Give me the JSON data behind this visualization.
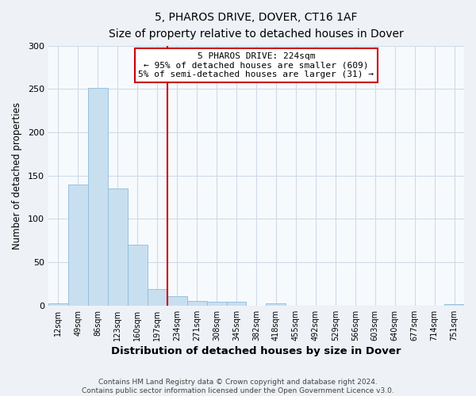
{
  "title": "5, PHAROS DRIVE, DOVER, CT16 1AF",
  "subtitle": "Size of property relative to detached houses in Dover",
  "xlabel": "Distribution of detached houses by size in Dover",
  "ylabel": "Number of detached properties",
  "bar_labels": [
    "12sqm",
    "49sqm",
    "86sqm",
    "123sqm",
    "160sqm",
    "197sqm",
    "234sqm",
    "271sqm",
    "308sqm",
    "345sqm",
    "382sqm",
    "418sqm",
    "455sqm",
    "492sqm",
    "529sqm",
    "566sqm",
    "603sqm",
    "640sqm",
    "677sqm",
    "714sqm",
    "751sqm"
  ],
  "bar_values": [
    3,
    140,
    251,
    135,
    70,
    19,
    11,
    5,
    4,
    4,
    0,
    3,
    0,
    0,
    0,
    0,
    0,
    0,
    0,
    0,
    2
  ],
  "bar_color": "#c8dff0",
  "bar_edge_color": "#8bbcda",
  "ylim": [
    0,
    300
  ],
  "yticks": [
    0,
    50,
    100,
    150,
    200,
    250,
    300
  ],
  "vline_color": "#cc0000",
  "annotation_text": "5 PHAROS DRIVE: 224sqm\n← 95% of detached houses are smaller (609)\n5% of semi-detached houses are larger (31) →",
  "annotation_box_color": "#cc0000",
  "footer_line1": "Contains HM Land Registry data © Crown copyright and database right 2024.",
  "footer_line2": "Contains public sector information licensed under the Open Government Licence v3.0.",
  "background_color": "#eef2f7",
  "plot_bg_color": "#f7fafd",
  "grid_color": "#d0dae6"
}
